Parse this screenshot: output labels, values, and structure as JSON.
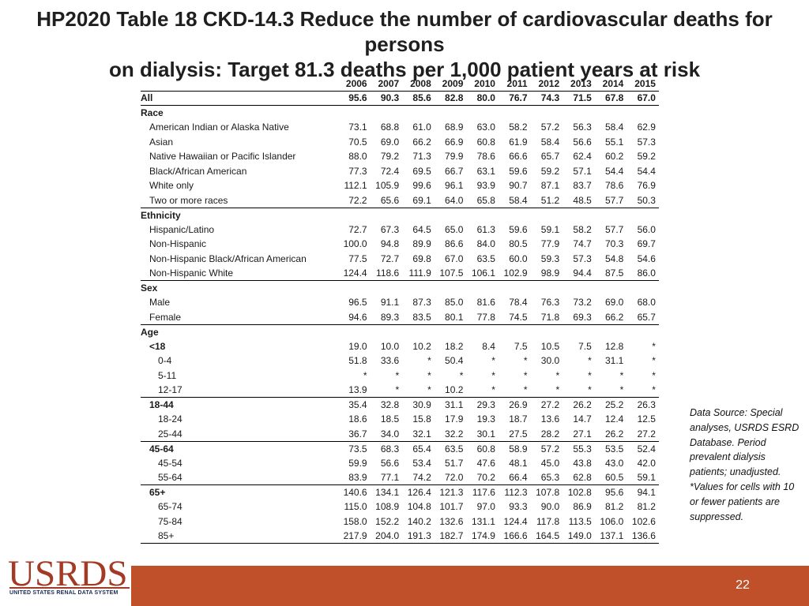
{
  "title_line1": "HP2020 Table 18 CKD-14.3 Reduce the number of cardiovascular deaths for persons",
  "title_line2": "on dialysis: Target 81.3 deaths per 1,000 patient years at risk",
  "table": {
    "years": [
      "2006",
      "2007",
      "2008",
      "2009",
      "2010",
      "2011",
      "2012",
      "2013",
      "2014",
      "2015"
    ],
    "rows": [
      {
        "label": "All",
        "style": "section",
        "indent": 0,
        "rule": true,
        "values": [
          "95.6",
          "90.3",
          "85.6",
          "82.8",
          "80.0",
          "76.7",
          "74.3",
          "71.5",
          "67.8",
          "67.0"
        ]
      },
      {
        "label": "Race",
        "style": "section",
        "indent": 0,
        "values": []
      },
      {
        "label": "American Indian or Alaska Native",
        "indent": 1,
        "values": [
          "73.1",
          "68.8",
          "61.0",
          "68.9",
          "63.0",
          "58.2",
          "57.2",
          "56.3",
          "58.4",
          "62.9"
        ]
      },
      {
        "label": "Asian",
        "indent": 1,
        "values": [
          "70.5",
          "69.0",
          "66.2",
          "66.9",
          "60.8",
          "61.9",
          "58.4",
          "56.6",
          "55.1",
          "57.3"
        ]
      },
      {
        "label": "Native Hawaiian or Pacific Islander",
        "indent": 1,
        "values": [
          "88.0",
          "79.2",
          "71.3",
          "79.9",
          "78.6",
          "66.6",
          "65.7",
          "62.4",
          "60.2",
          "59.2"
        ]
      },
      {
        "label": "Black/African American",
        "indent": 1,
        "values": [
          "77.3",
          "72.4",
          "69.5",
          "66.7",
          "63.1",
          "59.6",
          "59.2",
          "57.1",
          "54.4",
          "54.4"
        ]
      },
      {
        "label": "White only",
        "indent": 1,
        "values": [
          "112.1",
          "105.9",
          "99.6",
          "96.1",
          "93.9",
          "90.7",
          "87.1",
          "83.7",
          "78.6",
          "76.9"
        ]
      },
      {
        "label": "Two or more races",
        "indent": 1,
        "rule": true,
        "values": [
          "72.2",
          "65.6",
          "69.1",
          "64.0",
          "65.8",
          "58.4",
          "51.2",
          "48.5",
          "57.7",
          "50.3"
        ]
      },
      {
        "label": "Ethnicity",
        "style": "section",
        "indent": 0,
        "values": []
      },
      {
        "label": "Hispanic/Latino",
        "indent": 1,
        "values": [
          "72.7",
          "67.3",
          "64.5",
          "65.0",
          "61.3",
          "59.6",
          "59.1",
          "58.2",
          "57.7",
          "56.0"
        ]
      },
      {
        "label": "Non-Hispanic",
        "indent": 1,
        "values": [
          "100.0",
          "94.8",
          "89.9",
          "86.6",
          "84.0",
          "80.5",
          "77.9",
          "74.7",
          "70.3",
          "69.7"
        ]
      },
      {
        "label": "Non-Hispanic Black/African American",
        "indent": 1,
        "values": [
          "77.5",
          "72.7",
          "69.8",
          "67.0",
          "63.5",
          "60.0",
          "59.3",
          "57.3",
          "54.8",
          "54.6"
        ]
      },
      {
        "label": "Non-Hispanic White",
        "indent": 1,
        "rule": true,
        "values": [
          "124.4",
          "118.6",
          "111.9",
          "107.5",
          "106.1",
          "102.9",
          "98.9",
          "94.4",
          "87.5",
          "86.0"
        ]
      },
      {
        "label": "Sex",
        "style": "section",
        "indent": 0,
        "values": []
      },
      {
        "label": "Male",
        "indent": 1,
        "values": [
          "96.5",
          "91.1",
          "87.3",
          "85.0",
          "81.6",
          "78.4",
          "76.3",
          "73.2",
          "69.0",
          "68.0"
        ]
      },
      {
        "label": "Female",
        "indent": 1,
        "rule": true,
        "values": [
          "94.6",
          "89.3",
          "83.5",
          "80.1",
          "77.8",
          "74.5",
          "71.8",
          "69.3",
          "66.2",
          "65.7"
        ]
      },
      {
        "label": "Age",
        "style": "section",
        "indent": 0,
        "values": []
      },
      {
        "label": "<18",
        "style": "bold",
        "indent": 1,
        "values": [
          "19.0",
          "10.0",
          "10.2",
          "18.2",
          "8.4",
          "7.5",
          "10.5",
          "7.5",
          "12.8",
          "*"
        ]
      },
      {
        "label": "0-4",
        "indent": 2,
        "values": [
          "51.8",
          "33.6",
          "*",
          "50.4",
          "*",
          "*",
          "30.0",
          "*",
          "31.1",
          "*"
        ]
      },
      {
        "label": "5-11",
        "indent": 2,
        "values": [
          "*",
          "*",
          "*",
          "*",
          "*",
          "*",
          "*",
          "*",
          "*",
          "*"
        ]
      },
      {
        "label": "12-17",
        "indent": 2,
        "rule": true,
        "values": [
          "13.9",
          "*",
          "*",
          "10.2",
          "*",
          "*",
          "*",
          "*",
          "*",
          "*"
        ]
      },
      {
        "label": "18-44",
        "style": "bold",
        "indent": 1,
        "values": [
          "35.4",
          "32.8",
          "30.9",
          "31.1",
          "29.3",
          "26.9",
          "27.2",
          "26.2",
          "25.2",
          "26.3"
        ]
      },
      {
        "label": "18-24",
        "indent": 2,
        "values": [
          "18.6",
          "18.5",
          "15.8",
          "17.9",
          "19.3",
          "18.7",
          "13.6",
          "14.7",
          "12.4",
          "12.5"
        ]
      },
      {
        "label": "25-44",
        "indent": 2,
        "rule": true,
        "values": [
          "36.7",
          "34.0",
          "32.1",
          "32.2",
          "30.1",
          "27.5",
          "28.2",
          "27.1",
          "26.2",
          "27.2"
        ]
      },
      {
        "label": "45-64",
        "style": "bold",
        "indent": 1,
        "values": [
          "73.5",
          "68.3",
          "65.4",
          "63.5",
          "60.8",
          "58.9",
          "57.2",
          "55.3",
          "53.5",
          "52.4"
        ]
      },
      {
        "label": "45-54",
        "indent": 2,
        "values": [
          "59.9",
          "56.6",
          "53.4",
          "51.7",
          "47.6",
          "48.1",
          "45.0",
          "43.8",
          "43.0",
          "42.0"
        ]
      },
      {
        "label": "55-64",
        "indent": 2,
        "rule": true,
        "values": [
          "83.9",
          "77.1",
          "74.2",
          "72.0",
          "70.2",
          "66.4",
          "65.3",
          "62.8",
          "60.5",
          "59.1"
        ]
      },
      {
        "label": "65+",
        "style": "bold",
        "indent": 1,
        "values": [
          "140.6",
          "134.1",
          "126.4",
          "121.3",
          "117.6",
          "112.3",
          "107.8",
          "102.8",
          "95.6",
          "94.1"
        ]
      },
      {
        "label": "65-74",
        "indent": 2,
        "values": [
          "115.0",
          "108.9",
          "104.8",
          "101.7",
          "97.0",
          "93.3",
          "90.0",
          "86.9",
          "81.2",
          "81.2"
        ]
      },
      {
        "label": "75-84",
        "indent": 2,
        "values": [
          "158.0",
          "152.2",
          "140.2",
          "132.6",
          "131.1",
          "124.4",
          "117.8",
          "113.5",
          "106.0",
          "102.6"
        ]
      },
      {
        "label": "85+",
        "indent": 2,
        "rule": true,
        "values": [
          "217.9",
          "204.0",
          "191.3",
          "182.7",
          "174.9",
          "166.6",
          "164.5",
          "149.0",
          "137.1",
          "136.6"
        ]
      }
    ]
  },
  "note": "Data Source: Special analyses, USRDS ESRD Database. Period prevalent dialysis patients; unadjusted. *Values for cells with 10 or fewer patients are suppressed.",
  "logo": {
    "text": "USRDS",
    "tagline": "UNITED STATES RENAL DATA SYSTEM"
  },
  "page_number": "22",
  "colors": {
    "footer": "#c0502a",
    "logo": "#a33a24",
    "tagline": "#1b2a5a"
  }
}
